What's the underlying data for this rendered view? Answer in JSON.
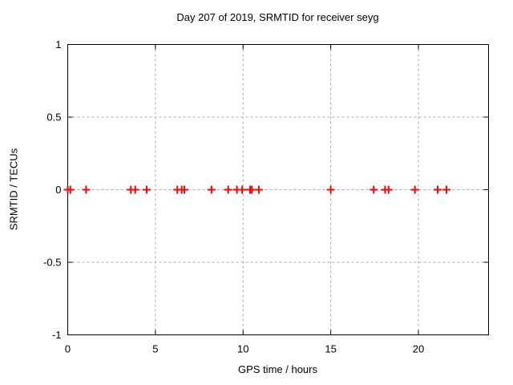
{
  "title": "Day 207 of 2019, SRMTID for receiver seyg",
  "chart_data": {
    "type": "scatter",
    "title": "Day 207 of 2019, SRMTID for receiver seyg",
    "xlabel": "GPS time / hours",
    "ylabel": "SRMTID / TECUs",
    "xlim": [
      0,
      24
    ],
    "ylim": [
      -1,
      1
    ],
    "xticks": [
      0,
      5,
      10,
      15,
      20
    ],
    "xtick_labels": [
      "0",
      "5",
      "10",
      "15",
      "20"
    ],
    "yticks": [
      1,
      0.5,
      0,
      -0.5,
      -1
    ],
    "ytick_labels": [
      "1",
      "0.5",
      "0",
      "-0.5",
      "-1"
    ],
    "grid": true,
    "grid_style": "dashed",
    "grid_color": "#aaaaaa",
    "border_color": "#000000",
    "legend": false,
    "marker": "plus",
    "marker_color": "#ff0000",
    "series": [
      {
        "name": "SRMTID",
        "x": [
          0.0,
          0.15,
          1.05,
          3.6,
          3.85,
          4.5,
          6.25,
          6.5,
          6.65,
          8.2,
          9.15,
          9.65,
          9.95,
          10.4,
          10.5,
          10.9,
          15.0,
          17.45,
          18.1,
          18.3,
          19.8,
          21.1,
          21.6
        ],
        "y": [
          0,
          0,
          0,
          0,
          0,
          0,
          0,
          0,
          0,
          0,
          0,
          0,
          0,
          0,
          0,
          0,
          0,
          0,
          0,
          0,
          0,
          0,
          0
        ]
      }
    ]
  }
}
